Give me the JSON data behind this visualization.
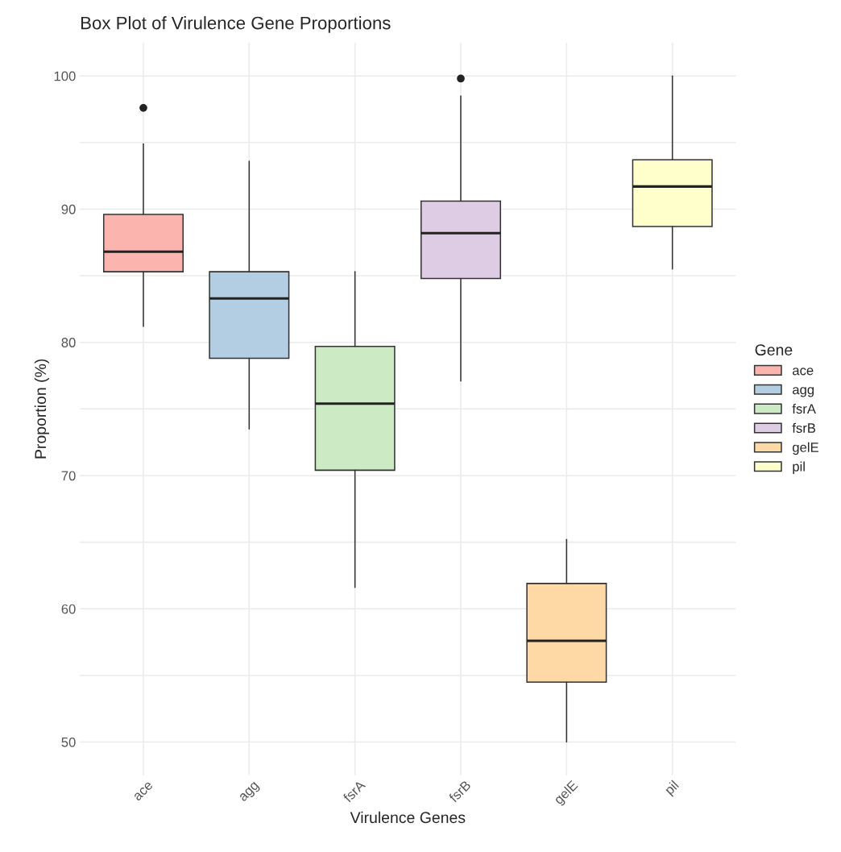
{
  "chart_data": {
    "type": "box",
    "title": "Box Plot of Virulence Gene Proportions",
    "xlabel": "Virulence Genes",
    "ylabel": "Proportion (%)",
    "legend_title": "Gene",
    "categories": [
      "ace",
      "agg",
      "fsrA",
      "fsrB",
      "gelE",
      "pil"
    ],
    "series": [
      {
        "name": "ace",
        "color": "#fbb4ae",
        "boxes": [
          {
            "low": 81.2,
            "q1": 85.3,
            "median": 86.8,
            "q3": 89.6,
            "high": 94.9,
            "outliers": [
              97.6
            ]
          },
          null,
          null,
          null,
          null,
          null
        ]
      },
      {
        "name": "agg",
        "color": "#b3cde3",
        "boxes": [
          null,
          {
            "low": 73.5,
            "q1": 78.8,
            "median": 83.3,
            "q3": 85.3,
            "high": 93.6
          },
          null,
          null,
          null,
          null
        ]
      },
      {
        "name": "fsrA",
        "color": "#ccebc5",
        "boxes": [
          null,
          null,
          {
            "low": 61.6,
            "q1": 70.4,
            "median": 75.4,
            "q3": 79.7,
            "high": 85.3
          },
          null,
          null,
          null
        ]
      },
      {
        "name": "fsrB",
        "color": "#decbe4",
        "boxes": [
          null,
          null,
          null,
          {
            "low": 77.1,
            "q1": 84.8,
            "median": 88.2,
            "q3": 90.6,
            "high": 98.5,
            "outliers": [
              99.8
            ]
          },
          null,
          null
        ]
      },
      {
        "name": "gelE",
        "color": "#fed9a6",
        "boxes": [
          null,
          null,
          null,
          null,
          {
            "low": 50,
            "q1": 54.5,
            "median": 57.6,
            "q3": 61.9,
            "high": 65.2
          },
          null
        ]
      },
      {
        "name": "pil",
        "color": "#ffffcc",
        "boxes": [
          null,
          null,
          null,
          null,
          null,
          {
            "low": 85.5,
            "q1": 88.7,
            "median": 91.7,
            "q3": 93.7,
            "high": 100
          }
        ]
      }
    ],
    "ylim": [
      47.5,
      102.5
    ],
    "yticks": [
      50,
      {
        "value": 55,
        "label": null
      },
      60,
      {
        "value": 65,
        "label": null
      },
      70,
      {
        "value": 75,
        "label": null
      },
      80,
      {
        "value": 85,
        "label": null
      },
      90,
      {
        "value": 95,
        "label": null
      },
      100
    ],
    "grid": true,
    "legend": "right"
  }
}
